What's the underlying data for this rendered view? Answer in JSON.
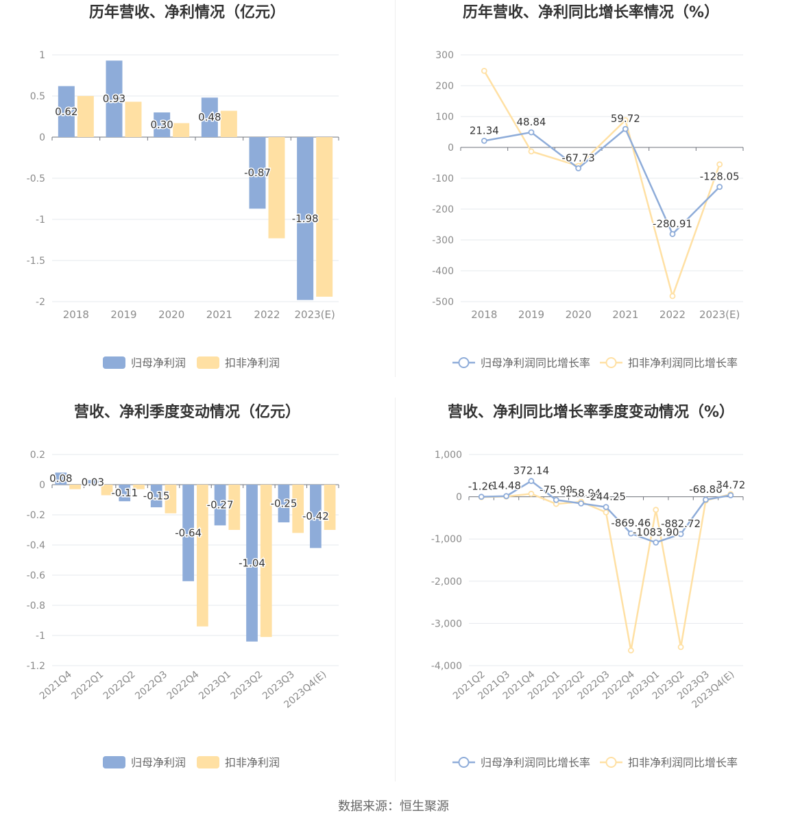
{
  "footer": {
    "source": "数据来源：恒生聚源"
  },
  "colors": {
    "parent": "#8eacd9",
    "deducted": "#ffe0a3",
    "axis": "#6e7079",
    "grid": "#e6e8ee",
    "text": "#333333",
    "tick": "#8a8a8a"
  },
  "chart_data": [
    {
      "type": "bar",
      "title": "历年营收、净利情况（亿元）",
      "categories": [
        "2018",
        "2019",
        "2020",
        "2021",
        "2022",
        "2023(E)"
      ],
      "ylim": [
        -2,
        1
      ],
      "yticks": [
        1,
        0.5,
        0,
        -0.5,
        -1,
        -1.5,
        -2
      ],
      "ytick_labels": [
        "1",
        "0.5",
        "0",
        "-0.5",
        "-1",
        "-1.5",
        "-2"
      ],
      "series": [
        {
          "name": "归母净利润",
          "values": [
            0.62,
            0.93,
            0.3,
            0.48,
            -0.87,
            -1.98
          ],
          "labels": [
            "0.62",
            "0.93",
            "0.30",
            "0.48",
            "-0.87",
            "-1.98"
          ]
        },
        {
          "name": "扣非净利润",
          "values": [
            0.5,
            0.43,
            0.17,
            0.32,
            -1.23,
            -1.94
          ]
        }
      ],
      "legend": "bottom"
    },
    {
      "type": "line",
      "title": "历年营收、净利同比增长率情况（%）",
      "categories": [
        "2018",
        "2019",
        "2020",
        "2021",
        "2022",
        "2023(E)"
      ],
      "ylim": [
        -500,
        300
      ],
      "yticks": [
        300,
        200,
        100,
        0,
        -100,
        -200,
        -300,
        -400,
        -500
      ],
      "ytick_labels": [
        "300",
        "200",
        "100",
        "0",
        "-100",
        "-200",
        "-300",
        "-400",
        "-500"
      ],
      "series": [
        {
          "name": "归母净利润同比增长率",
          "values": [
            21.34,
            48.84,
            -67.73,
            59.72,
            -280.91,
            -128.05
          ],
          "labels": [
            "21.34",
            "48.84",
            "-67.73",
            "59.72",
            "-280.91",
            "-128.05"
          ]
        },
        {
          "name": "扣非净利润同比增长率",
          "values": [
            248,
            -13,
            -60,
            88,
            -482,
            -55
          ]
        }
      ],
      "legend": "bottom"
    },
    {
      "type": "bar",
      "title": "营收、净利季度变动情况（亿元）",
      "categories": [
        "2021Q4",
        "2022Q1",
        "2022Q2",
        "2022Q3",
        "2022Q4",
        "2023Q1",
        "2023Q2",
        "2023Q3",
        "2023Q4(E)"
      ],
      "ylim": [
        -1.2,
        0.2
      ],
      "yticks": [
        0.2,
        0,
        -0.2,
        -0.4,
        -0.6,
        -0.8,
        -1,
        -1.2
      ],
      "ytick_labels": [
        "0.2",
        "0",
        "-0.2",
        "-0.4",
        "-0.6",
        "-0.8",
        "-1",
        "-1.2"
      ],
      "series": [
        {
          "name": "归母净利润",
          "values": [
            0.08,
            0.03,
            -0.11,
            -0.15,
            -0.64,
            -0.27,
            -1.04,
            -0.25,
            -0.42
          ],
          "labels": [
            "0.08",
            "0.03",
            "-0.11",
            "-0.15",
            "-0.64",
            "-0.27",
            "-1.04",
            "-0.25",
            "-0.42"
          ]
        },
        {
          "name": "扣非净利润",
          "values": [
            -0.03,
            -0.07,
            -0.03,
            -0.19,
            -0.94,
            -0.3,
            -1.01,
            -0.32,
            -0.3
          ]
        }
      ],
      "legend": "bottom"
    },
    {
      "type": "line",
      "title": "营收、净利同比增长率季度变动情况（%）",
      "categories": [
        "2021Q2",
        "2021Q3",
        "2021Q4",
        "2022Q1",
        "2022Q2",
        "2022Q3",
        "2022Q4",
        "2023Q1",
        "2023Q2",
        "2023Q3",
        "2023Q4(E)"
      ],
      "ylim": [
        -4000,
        1000
      ],
      "yticks": [
        1000,
        0,
        -1000,
        -2000,
        -3000,
        -4000
      ],
      "ytick_labels": [
        "1,000",
        "0",
        "-1,000",
        "-2,000",
        "-3,000",
        "-4,000"
      ],
      "series": [
        {
          "name": "归母净利润同比增长率",
          "values": [
            -1.26,
            14.48,
            372.14,
            -75.99,
            -158.94,
            -244.25,
            -869.46,
            -1083.9,
            -882.72,
            -68.86,
            34.72
          ],
          "labels": [
            "-1.26",
            "14.48",
            "372.14",
            "-75.99",
            "-158.94",
            "-244.25",
            "-869.46",
            "-1083.90",
            "-882.72",
            "-68.86",
            "34.72"
          ]
        },
        {
          "name": "扣非净利润同比增长率",
          "values": [
            -10,
            5,
            70,
            -170,
            -120,
            -370,
            -3640,
            -310,
            -3560,
            -90,
            60
          ]
        }
      ],
      "legend": "bottom"
    }
  ]
}
